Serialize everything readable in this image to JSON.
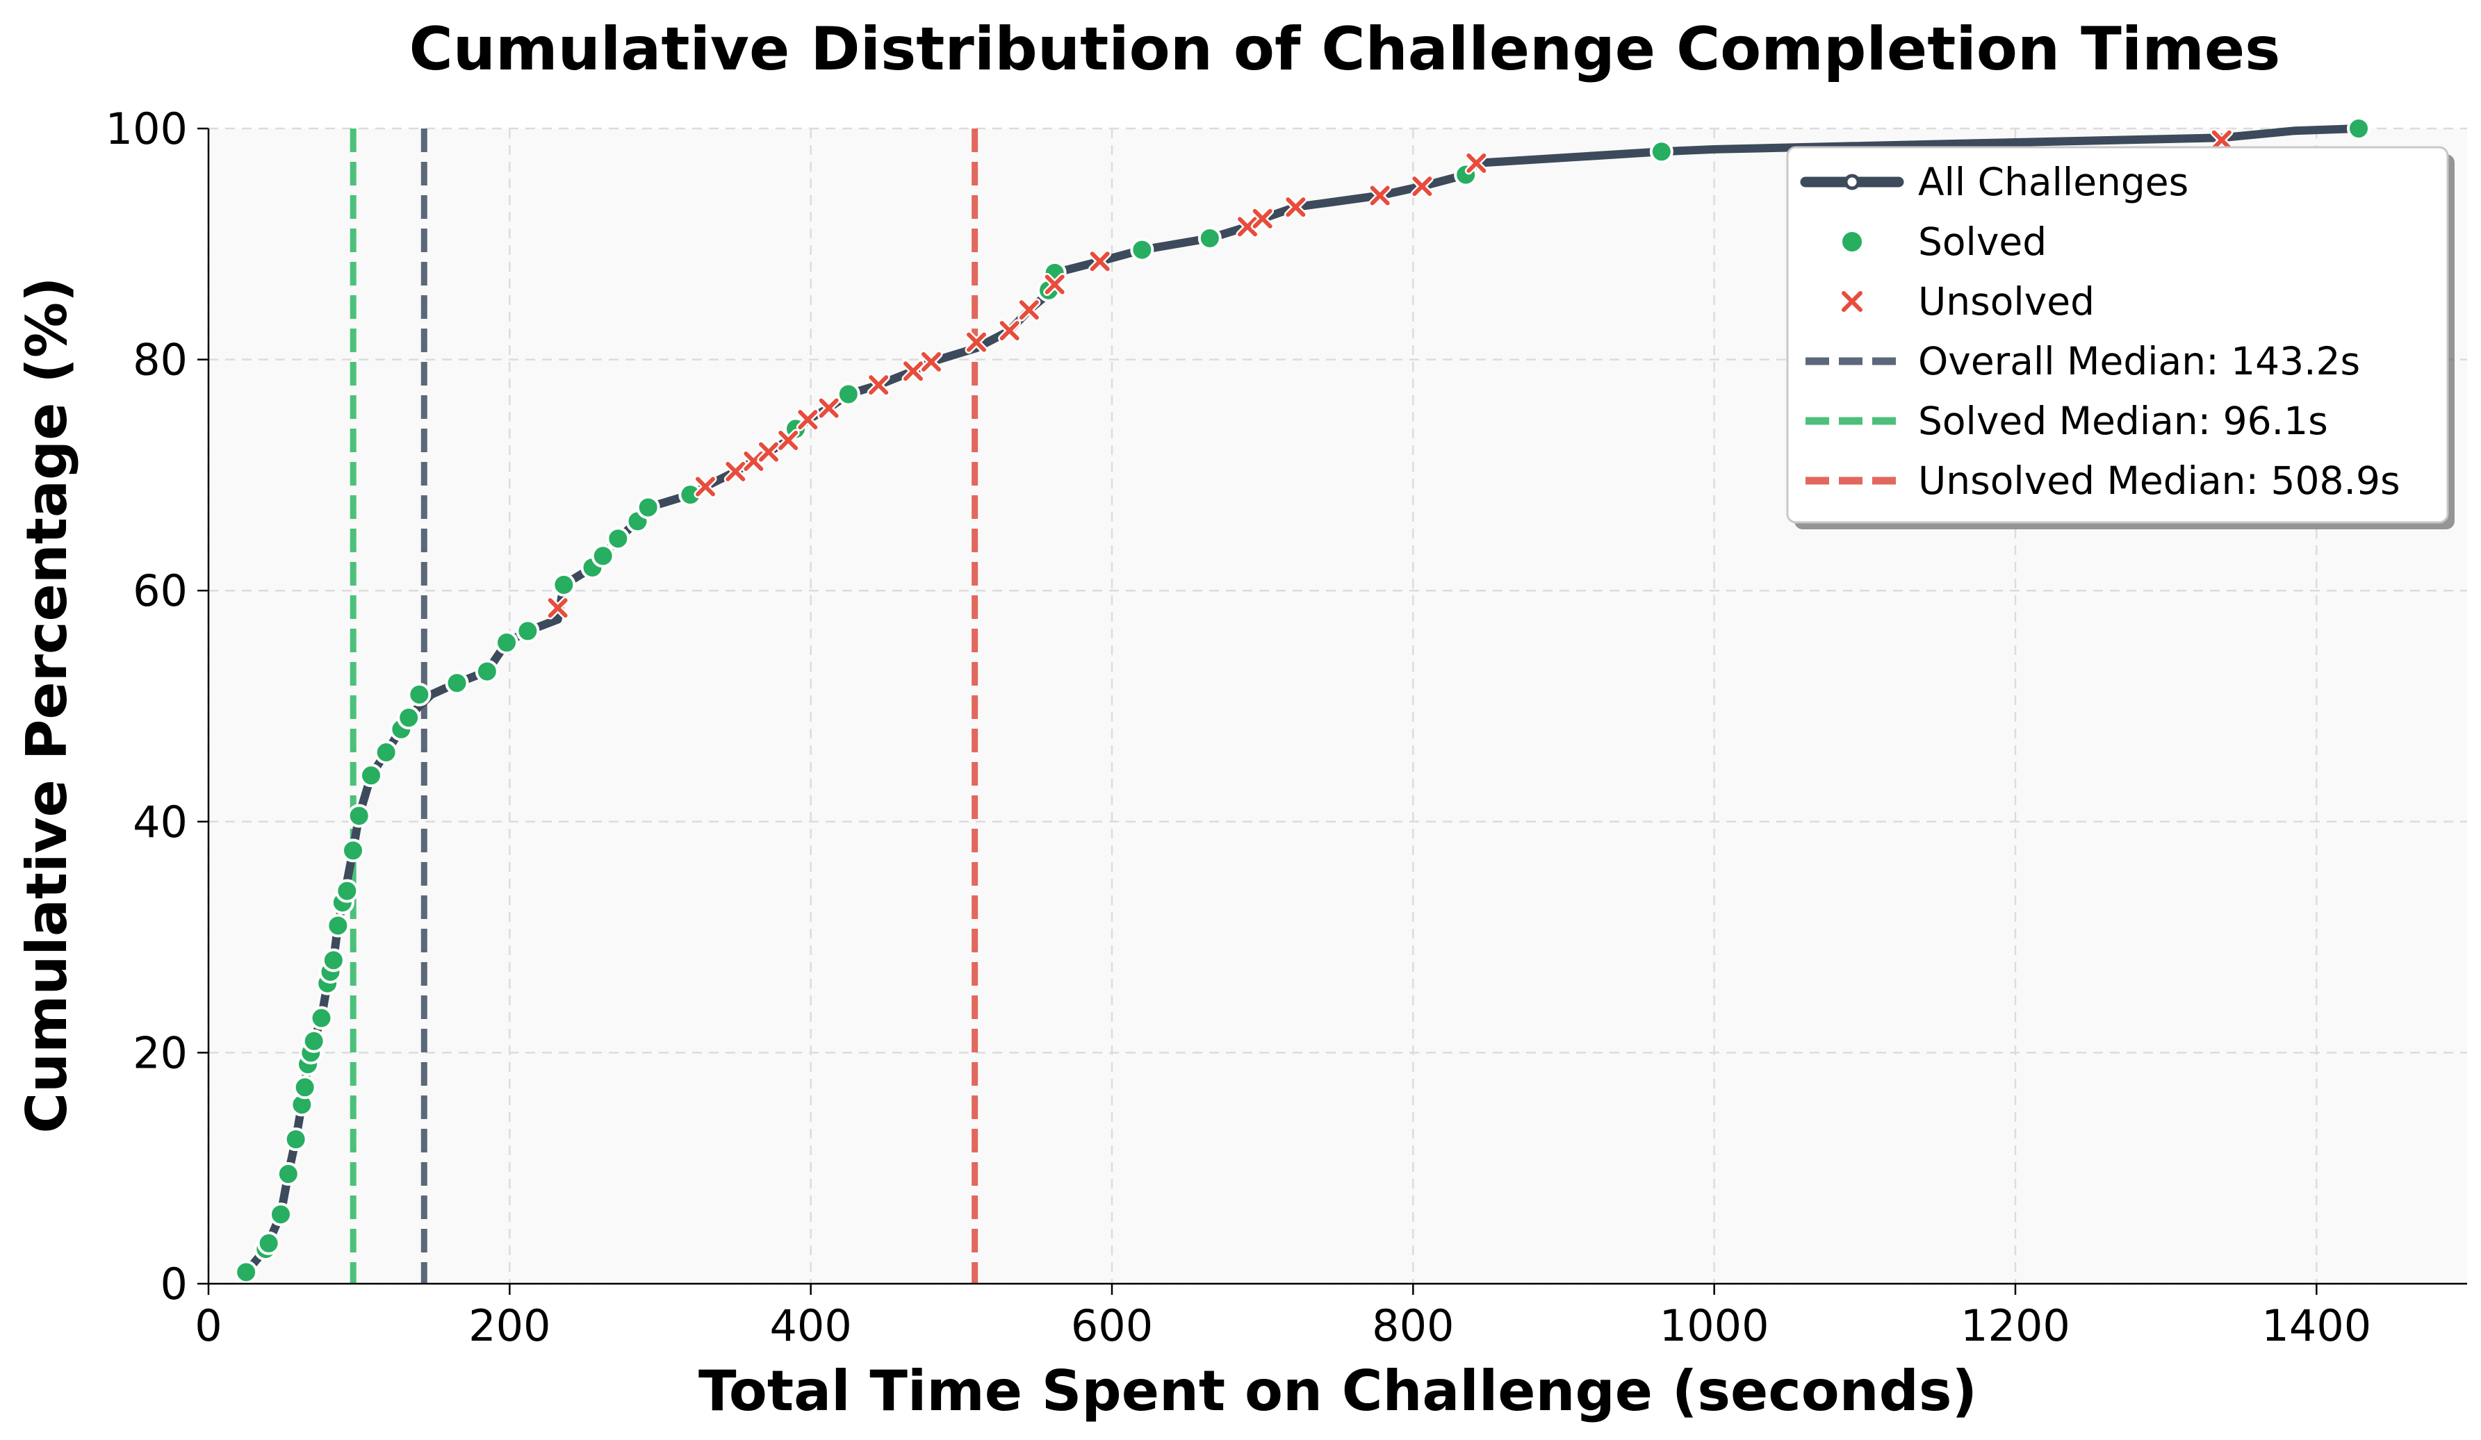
{
  "chart_data": {
    "type": "line",
    "title": "Cumulative Distribution of Challenge Completion Times",
    "xlabel": "Total Time Spent on Challenge (seconds)",
    "ylabel": "Cumulative Percentage (%)",
    "xlim": [
      0,
      1500
    ],
    "ylim": [
      0,
      100
    ],
    "xticks": [
      "0",
      "200",
      "400",
      "600",
      "800",
      "1000",
      "1200",
      "1400"
    ],
    "yticks": [
      "0",
      "20",
      "40",
      "60",
      "80",
      "100"
    ],
    "grid": true,
    "legend_position": "top-right",
    "colors": {
      "line": "#3d4a5b",
      "solved": "#27ae60",
      "unsolved": "#e74c3c",
      "overall_median": "#5b6879",
      "solved_median": "#4cc07a",
      "unsolved_median": "#e2685d",
      "plot_background": "#f9f9f9"
    },
    "series": [
      {
        "name": "All Challenges",
        "kind": "line",
        "x": [
          25,
          38,
          48,
          53,
          58,
          62,
          66,
          70,
          75,
          79,
          83,
          86,
          89,
          92,
          96,
          100,
          108,
          118,
          128,
          133,
          140,
          148,
          165,
          185,
          198,
          212,
          232,
          236,
          255,
          262,
          272,
          285,
          292,
          320,
          330,
          350,
          362,
          372,
          385,
          398,
          412,
          425,
          445,
          468,
          480,
          510,
          532,
          545,
          556,
          562,
          592,
          620,
          665,
          690,
          700,
          722,
          778,
          806,
          835,
          842,
          965,
          1000,
          1100,
          1200,
          1337,
          1385,
          1428
        ],
        "y": [
          1,
          3,
          6,
          9.5,
          12.5,
          15.5,
          19,
          21,
          23,
          26,
          28,
          31,
          33,
          34.8,
          37.5,
          40.5,
          44,
          46,
          48,
          49,
          50,
          51,
          52,
          53,
          55.5,
          56.5,
          57.5,
          60.5,
          62,
          63,
          64.5,
          66,
          67.2,
          68.3,
          69,
          70.3,
          71.2,
          72,
          73,
          74.8,
          75.8,
          77,
          77.8,
          79,
          79.8,
          81,
          82.5,
          84.3,
          85.5,
          87.5,
          88.5,
          89.5,
          90.5,
          91.5,
          92.2,
          93.2,
          94.2,
          95,
          96,
          97,
          98,
          98.2,
          98.5,
          98.8,
          99.2,
          99.8,
          100
        ]
      },
      {
        "name": "Solved",
        "kind": "scatter",
        "x": [
          25,
          38,
          40,
          48,
          53,
          58,
          62,
          64,
          66,
          68,
          70,
          75,
          79,
          81,
          83,
          86,
          89,
          92,
          96,
          100,
          108,
          118,
          128,
          133,
          140,
          165,
          185,
          198,
          212,
          236,
          255,
          262,
          272,
          285,
          292,
          320,
          390,
          425,
          558,
          562,
          620,
          665,
          835,
          965,
          1428
        ],
        "y": [
          1,
          3,
          3.5,
          6,
          9.5,
          12.5,
          15.5,
          17,
          19,
          20,
          21,
          23,
          26,
          27,
          28,
          31,
          33,
          34,
          37.5,
          40.5,
          44,
          46,
          48,
          49,
          51,
          52,
          53,
          55.5,
          56.5,
          60.5,
          62,
          63,
          64.5,
          66,
          67.2,
          68.3,
          74,
          77,
          86,
          87.5,
          89.5,
          90.5,
          96,
          98,
          100
        ]
      },
      {
        "name": "Unsolved",
        "kind": "scatter",
        "x": [
          232,
          330,
          350,
          362,
          372,
          385,
          398,
          412,
          445,
          468,
          480,
          510,
          532,
          545,
          562,
          592,
          690,
          700,
          722,
          778,
          806,
          842,
          1337
        ],
        "y": [
          58.5,
          69,
          70.3,
          71.2,
          72,
          73,
          74.8,
          75.8,
          77.8,
          79,
          79.8,
          81.5,
          82.5,
          84.3,
          86.5,
          88.5,
          91.5,
          92.2,
          93.2,
          94.2,
          95,
          97,
          99
        ]
      },
      {
        "name": "Overall Median: 143.2s",
        "kind": "vline",
        "x": 143.2
      },
      {
        "name": "Solved Median: 96.1s",
        "kind": "vline",
        "x": 96.1
      },
      {
        "name": "Unsolved Median: 508.9s",
        "kind": "vline",
        "x": 508.9
      }
    ]
  }
}
